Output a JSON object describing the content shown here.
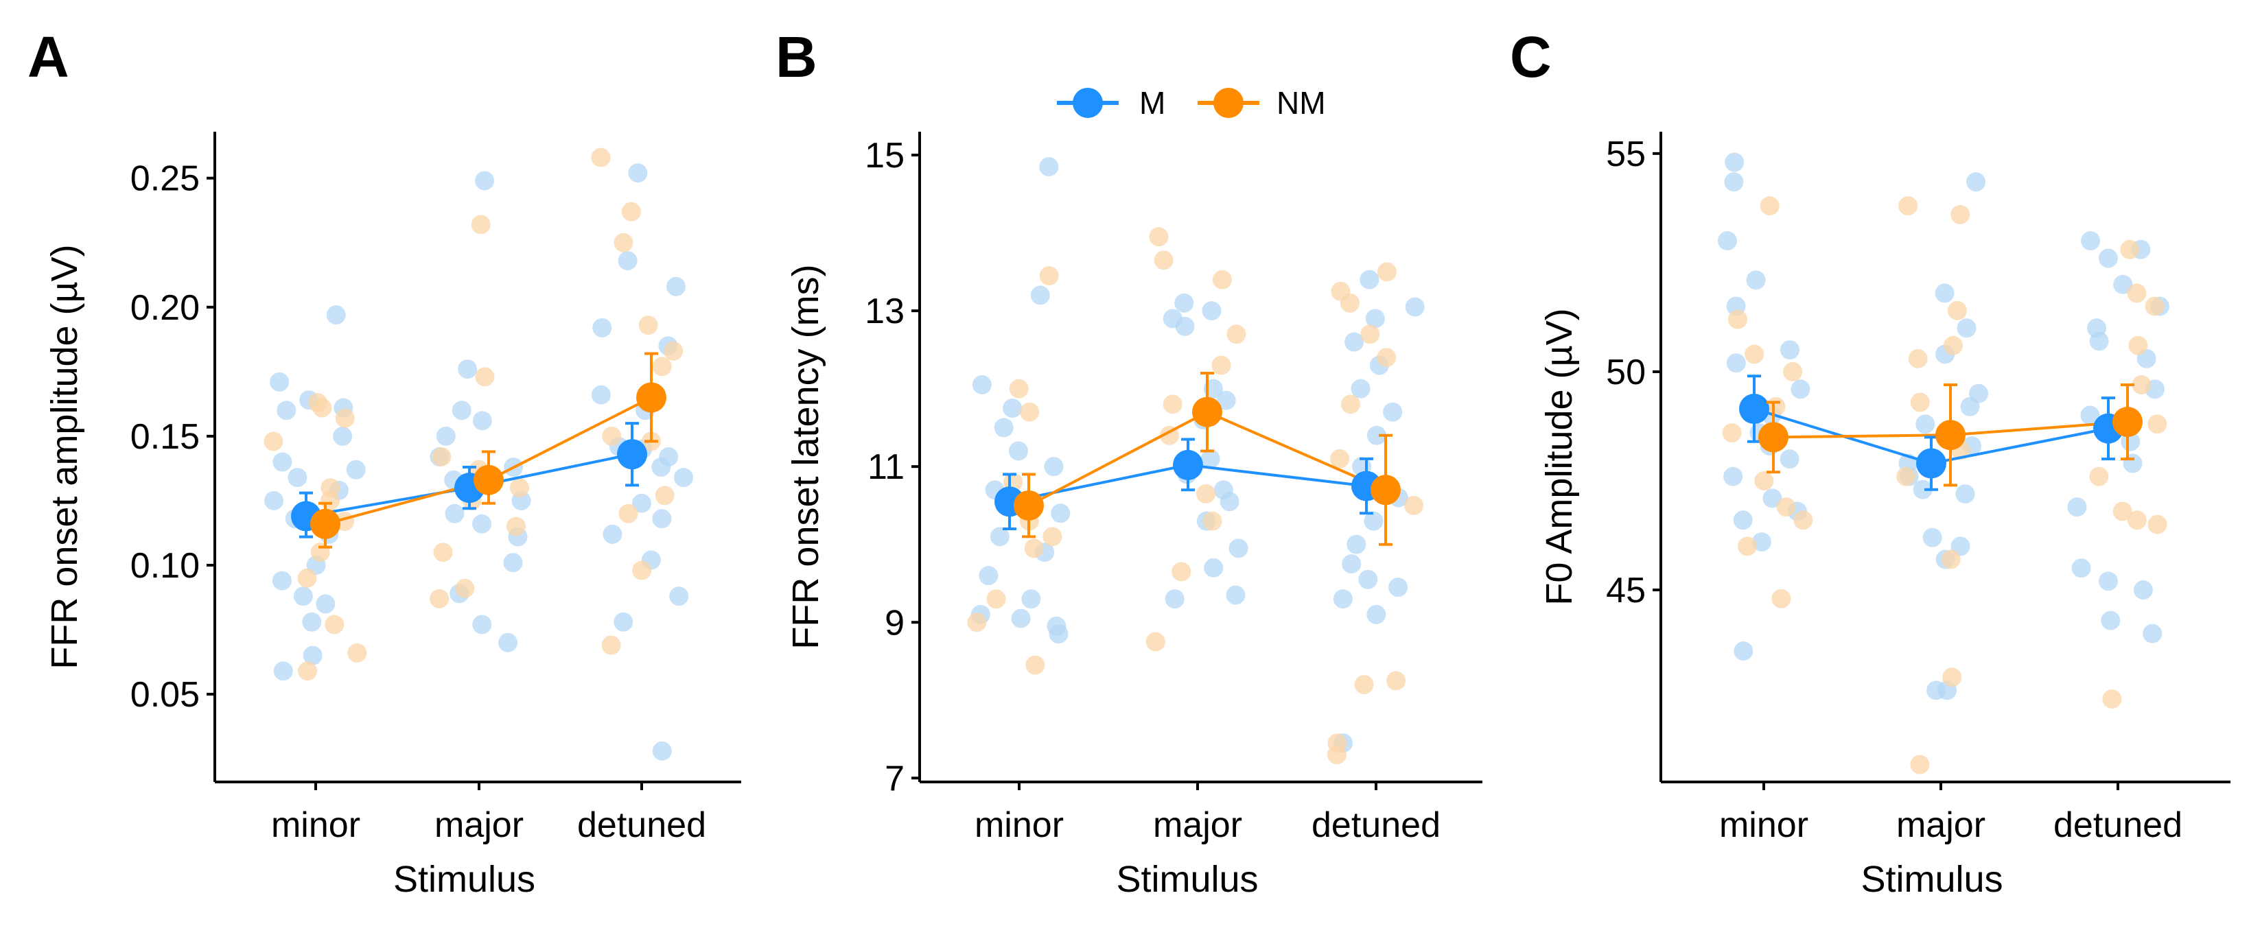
{
  "legend": {
    "entries": [
      {
        "label": "M",
        "color": "#1E90FF"
      },
      {
        "label": "NM",
        "color": "#FF8C00"
      }
    ]
  },
  "colors": {
    "M": "#1E90FF",
    "NM": "#FF8C00",
    "M_light": "#B3D7F5",
    "NM_light": "#FBD5A8"
  },
  "chart_data": [
    {
      "panel": "A",
      "type": "scatter",
      "categories": [
        "minor",
        "major",
        "detuned"
      ],
      "xlabel": "Stimulus",
      "ylabel": "FFR onset amplitude (µV)",
      "ylim": [
        0.016,
        0.268
      ],
      "yticks": [
        0.05,
        0.1,
        0.15,
        0.2,
        0.25
      ],
      "ytick_labels": [
        "0.05",
        "0.10",
        "0.15",
        "0.20",
        "0.25"
      ],
      "series": [
        {
          "name": "M",
          "means": [
            0.119,
            0.13,
            0.143
          ],
          "lower": [
            0.111,
            0.122,
            0.131
          ],
          "upper": [
            0.128,
            0.138,
            0.155
          ],
          "points": [
            [
              0.197,
              0.171,
              0.164,
              0.161,
              0.16,
              0.15,
              0.14,
              0.137,
              0.134,
              0.129,
              0.125,
              0.118,
              0.112,
              0.1,
              0.094,
              0.088,
              0.085,
              0.078,
              0.065,
              0.059
            ],
            [
              0.249,
              0.176,
              0.16,
              0.156,
              0.15,
              0.142,
              0.138,
              0.133,
              0.128,
              0.125,
              0.12,
              0.116,
              0.111,
              0.101,
              0.089,
              0.077,
              0.07
            ],
            [
              0.252,
              0.218,
              0.208,
              0.192,
              0.185,
              0.166,
              0.16,
              0.146,
              0.145,
              0.142,
              0.138,
              0.134,
              0.124,
              0.118,
              0.112,
              0.102,
              0.088,
              0.078,
              0.028
            ]
          ]
        },
        {
          "name": "NM",
          "means": [
            0.116,
            0.133,
            0.165
          ],
          "lower": [
            0.107,
            0.124,
            0.148
          ],
          "upper": [
            0.124,
            0.144,
            0.182
          ],
          "points": [
            [
              0.163,
              0.161,
              0.157,
              0.148,
              0.13,
              0.125,
              0.117,
              0.105,
              0.095,
              0.077,
              0.066,
              0.059
            ],
            [
              0.232,
              0.173,
              0.142,
              0.137,
              0.13,
              0.125,
              0.115,
              0.105,
              0.091,
              0.087
            ],
            [
              0.258,
              0.237,
              0.225,
              0.193,
              0.183,
              0.177,
              0.15,
              0.148,
              0.127,
              0.12,
              0.098,
              0.069
            ]
          ]
        }
      ]
    },
    {
      "panel": "B",
      "type": "scatter",
      "categories": [
        "minor",
        "major",
        "detuned"
      ],
      "xlabel": "Stimulus",
      "ylabel": "FFR onset latency (ms)",
      "ylim": [
        6.95,
        15.3
      ],
      "yticks": [
        7,
        9,
        11,
        13,
        15
      ],
      "ytick_labels": [
        "7",
        "9",
        "11",
        "13",
        "15"
      ],
      "series": [
        {
          "name": "M",
          "means": [
            10.55,
            11.02,
            10.75
          ],
          "lower": [
            10.2,
            10.7,
            10.4
          ],
          "upper": [
            10.9,
            11.35,
            11.1
          ],
          "points": [
            [
              14.85,
              13.2,
              12.05,
              11.75,
              11.5,
              11.2,
              11.0,
              10.7,
              10.4,
              10.1,
              9.9,
              9.6,
              9.3,
              9.1,
              9.05,
              8.95,
              8.85
            ],
            [
              13.1,
              13.0,
              12.9,
              12.8,
              12.0,
              11.85,
              11.6,
              11.1,
              10.9,
              10.7,
              10.55,
              10.3,
              9.95,
              9.7,
              9.35,
              9.3
            ],
            [
              13.4,
              13.05,
              12.9,
              12.6,
              12.3,
              12.0,
              11.7,
              11.4,
              11.0,
              10.6,
              10.3,
              10.0,
              9.75,
              9.55,
              9.45,
              9.3,
              9.1,
              7.45
            ]
          ]
        },
        {
          "name": "NM",
          "means": [
            10.5,
            11.7,
            10.7
          ],
          "lower": [
            10.1,
            11.2,
            10.0
          ],
          "upper": [
            10.9,
            12.2,
            11.4
          ],
          "points": [
            [
              13.45,
              12.0,
              11.7,
              10.8,
              10.3,
              10.1,
              9.95,
              9.3,
              9.0,
              8.45
            ],
            [
              13.95,
              13.65,
              13.4,
              12.7,
              12.3,
              11.8,
              11.4,
              10.65,
              10.3,
              9.65,
              8.75
            ],
            [
              13.5,
              13.25,
              13.1,
              12.7,
              12.4,
              11.8,
              11.1,
              10.5,
              8.25,
              8.2,
              7.45,
              7.3
            ]
          ]
        }
      ]
    },
    {
      "panel": "C",
      "type": "scatter",
      "categories": [
        "minor",
        "major",
        "detuned"
      ],
      "xlabel": "Stimulus",
      "ylabel": "F0 Amplitude (µV)",
      "ylim": [
        40.6,
        55.5
      ],
      "yticks": [
        45,
        50,
        55
      ],
      "ytick_labels": [
        "45",
        "50",
        "55"
      ],
      "series": [
        {
          "name": "M",
          "means": [
            49.15,
            47.9,
            48.7
          ],
          "lower": [
            48.4,
            47.3,
            48.0
          ],
          "upper": [
            49.9,
            48.5,
            49.4
          ],
          "points": [
            [
              54.8,
              54.35,
              53.0,
              52.1,
              51.5,
              50.5,
              50.2,
              49.6,
              49.0,
              48.6,
              48.3,
              48.0,
              47.6,
              47.1,
              46.8,
              46.6,
              46.1,
              43.6
            ],
            [
              54.35,
              51.8,
              51.0,
              50.4,
              49.5,
              49.2,
              48.8,
              48.3,
              47.9,
              47.6,
              47.3,
              47.2,
              46.2,
              46.0,
              45.7,
              42.7,
              42.7
            ],
            [
              53.0,
              52.8,
              52.6,
              52.0,
              51.5,
              51.0,
              50.7,
              50.3,
              49.6,
              49.0,
              48.4,
              47.9,
              46.9,
              45.5,
              45.2,
              45.0,
              44.3,
              44.0
            ]
          ]
        },
        {
          "name": "NM",
          "means": [
            48.5,
            48.55,
            48.85
          ],
          "lower": [
            47.7,
            47.4,
            48.0
          ],
          "upper": [
            49.3,
            49.7,
            49.7
          ],
          "points": [
            [
              53.8,
              51.2,
              50.4,
              50.0,
              49.2,
              48.6,
              47.5,
              46.9,
              46.6,
              46.0,
              44.8
            ],
            [
              53.8,
              53.6,
              51.4,
              50.6,
              50.3,
              49.3,
              48.2,
              47.6,
              45.7,
              43.0,
              41.0
            ],
            [
              52.8,
              51.8,
              51.5,
              50.6,
              49.7,
              48.8,
              47.6,
              46.8,
              46.6,
              46.5,
              42.5
            ]
          ]
        }
      ]
    }
  ]
}
